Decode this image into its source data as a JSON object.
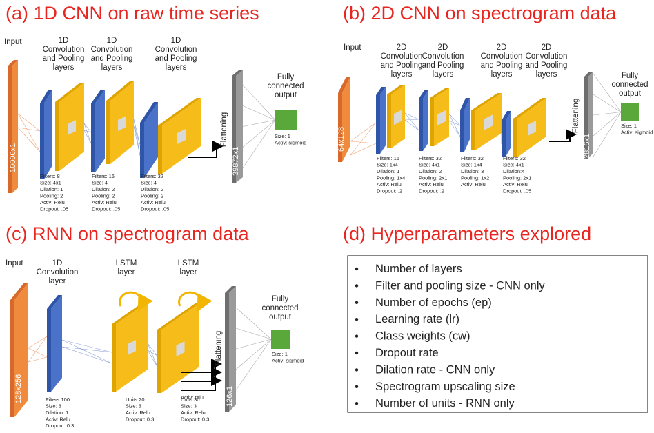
{
  "panels": {
    "a": {
      "title": "(a) 1D CNN on raw time series",
      "input": {
        "label": "Input",
        "size": "10000x1"
      },
      "layers": [
        {
          "label": [
            "1D",
            "Convolution",
            "and Pooling",
            "layers"
          ],
          "params": [
            "Filters: 8",
            "Size: 4x1",
            "Dilation: 1",
            "Pooling: 2",
            "Activ: Relu",
            "Dropout: .05"
          ]
        },
        {
          "label": [
            "1D",
            "Convolution",
            "and Pooling",
            "layers"
          ],
          "params": [
            "Filters: 16",
            "Size: 4",
            "Dilation: 2",
            "Pooling: 2",
            "Activ: Relu",
            "Dropout: .05"
          ]
        },
        {
          "label": [
            "1D",
            "Convolution",
            "and Pooling",
            "layers"
          ],
          "params": [
            "Filters: 32",
            "Size: 4",
            "Dilation: 2",
            "Pooling: 2",
            "Activ: Relu",
            "Dropout: .05"
          ]
        }
      ],
      "flatten": {
        "label": "Flattening",
        "size": "39872x1"
      },
      "output": {
        "label": [
          "Fully",
          "connected",
          "output"
        ],
        "params": [
          "Size: 1",
          "Activ: sigmoid"
        ]
      }
    },
    "b": {
      "title": "(b) 2D CNN on spectrogram data",
      "input": {
        "label": "Input",
        "size": "64x128"
      },
      "layers": [
        {
          "label": [
            "2D",
            "Convolution",
            "and Pooling",
            "layers"
          ],
          "params": [
            "Filters: 16",
            "Size: 1x4",
            "Dilation: 1",
            "Pooling: 1x4",
            "Activ: Relu",
            "Dropout: .2"
          ]
        },
        {
          "label": [
            "2D",
            "Convolution",
            "and Pooling",
            "layers"
          ],
          "params": [
            "Filters: 32",
            "Size: 4x1",
            "Dilation: 2",
            "Pooling: 2x1",
            "Activ: Relu",
            "Dropout: .2"
          ]
        },
        {
          "label": [
            "2D",
            "Convolution",
            "and Pooling",
            "layers"
          ],
          "params": [
            "Filters: 32",
            "Size: 1x4",
            "Dilation: 3",
            "Pooling: 1x2",
            "Activ: Relu"
          ]
        },
        {
          "label": [
            "2D",
            "Convolution",
            "and Pooling",
            "layers"
          ],
          "params": [
            "Filters: 32",
            "Size: 4x1",
            "Dilation:4",
            "Pooling: 2x1",
            "Activ: Relu",
            "Dropout: .05"
          ]
        }
      ],
      "flatten": {
        "label": "Flattening",
        "size": "2816x1"
      },
      "output": {
        "label": [
          "Fully",
          "connected",
          "output"
        ],
        "params": [
          "Size: 1",
          "Activ: sigmoid"
        ]
      }
    },
    "c": {
      "title": "(c) RNN on spectrogram data",
      "input": {
        "label": "Input",
        "size": "128x256"
      },
      "layers": [
        {
          "label": [
            "1D",
            "Convolution",
            "layer"
          ],
          "params": [
            "Filters 100",
            "Size: 3",
            "Dilation: 1",
            "Activ: Relu",
            "Dropout: 0.3"
          ]
        },
        {
          "label": [
            "LSTM",
            "layer"
          ],
          "params": [
            "Units 20",
            "Size: 3",
            "Activ: Relu",
            "Dropout: 0.3"
          ]
        },
        {
          "label": [
            "LSTM",
            "layer"
          ],
          "params": [
            "Units 30",
            "Size: 3",
            "Activ: Relu",
            "Dropout: 0.3"
          ]
        }
      ],
      "extra": "Activ: relu",
      "flatten": {
        "label": "Flattening",
        "size": "126x1"
      },
      "output": {
        "label": [
          "Fully",
          "connected",
          "output"
        ],
        "params": [
          "Size: 1",
          "Activ: sigmoid"
        ]
      }
    },
    "d": {
      "title": "(d) Hyperparameters explored",
      "items": [
        "Number of layers",
        "Filter and pooling size - CNN only",
        "Number of epochs (ep)",
        "Learning rate (lr)",
        "Class weights (cw)",
        "Dropout rate",
        "Dilation rate - CNN only",
        "Spectrogram upscaling size",
        "Number of units - RNN only"
      ]
    }
  }
}
